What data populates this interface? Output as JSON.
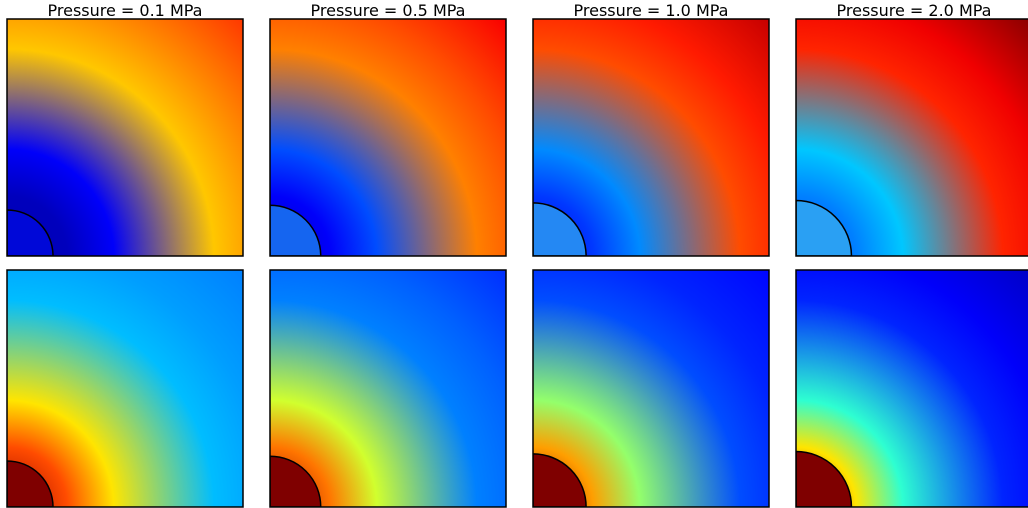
{
  "chart_data": {
    "type": "heatmap",
    "colormap": "jet",
    "grid": false,
    "layout": {
      "rows": 2,
      "cols": 4
    },
    "columns": [
      {
        "title": "Pressure = 0.1 MPa",
        "pressure_mpa": 0.1,
        "inclusion_radius_frac": 0.195
      },
      {
        "title": "Pressure = 0.5 MPa",
        "pressure_mpa": 0.5,
        "inclusion_radius_frac": 0.215
      },
      {
        "title": "Pressure = 1.0 MPa",
        "pressure_mpa": 1.0,
        "inclusion_radius_frac": 0.225
      },
      {
        "title": "Pressure = 2.0 MPa",
        "pressure_mpa": 2.0,
        "inclusion_radius_frac": 0.235
      }
    ],
    "rows": [
      {
        "field_stops": [
          [
            0.05,
            0.06,
            0.12,
            0.68,
            0.74,
            0.82
          ],
          [
            0.06,
            0.12,
            0.2,
            0.75,
            0.8,
            0.88
          ],
          [
            0.1,
            0.18,
            0.26,
            0.8,
            0.85,
            0.93
          ],
          [
            0.2,
            0.25,
            0.32,
            0.84,
            0.89,
            0.99
          ]
        ]
      },
      {
        "field_stops": [
          [
            0.97,
            0.8,
            0.65,
            0.31,
            0.28,
            0.25
          ],
          [
            0.97,
            0.76,
            0.58,
            0.25,
            0.22,
            0.17
          ],
          [
            0.97,
            0.72,
            0.52,
            0.2,
            0.16,
            0.13
          ],
          [
            0.97,
            0.65,
            0.42,
            0.16,
            0.12,
            0.07
          ]
        ]
      }
    ],
    "inclusion_colors": [
      "#0008d8",
      "#1565f0",
      "#2488f3",
      "#2aa0f3",
      "#7f0000",
      "#7f0000",
      "#7f0000",
      "#7f0000"
    ]
  }
}
